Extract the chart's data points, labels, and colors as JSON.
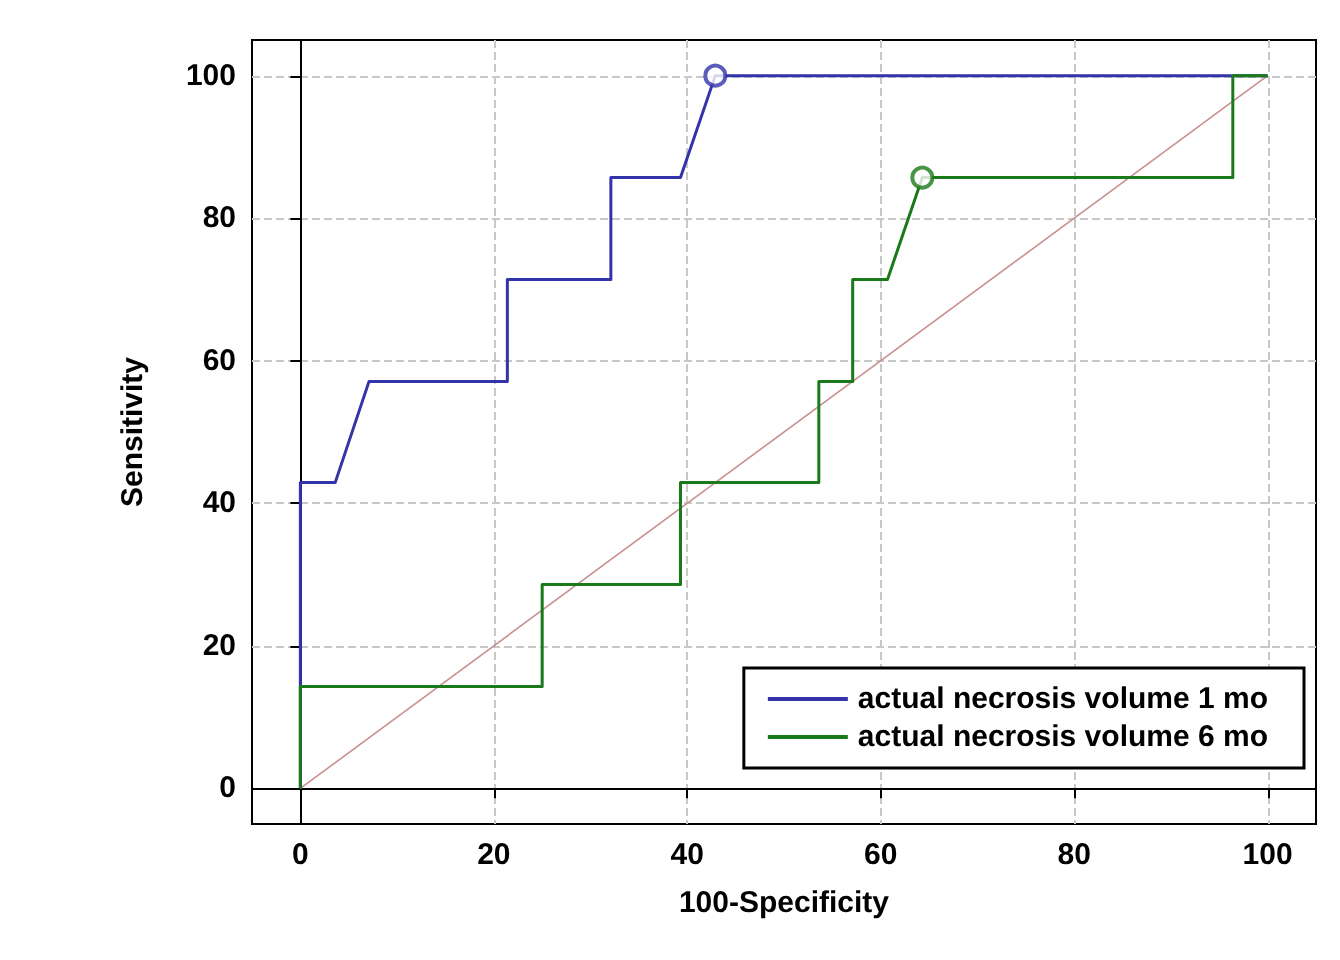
{
  "chart_data": {
    "type": "line",
    "xlabel": "100-Specificity",
    "ylabel": "Sensitivity",
    "xlim": [
      -5,
      105
    ],
    "ylim": [
      -5,
      105
    ],
    "xticks": [
      0,
      20,
      40,
      60,
      80,
      100
    ],
    "yticks": [
      0,
      20,
      40,
      60,
      80,
      100
    ],
    "grid": true,
    "legend": "bottom right",
    "series": [
      {
        "name": "actual necrosis volume 1 mo",
        "color": "#3333aa",
        "x": [
          0,
          0,
          3.6,
          7.1,
          21.4,
          21.4,
          32.1,
          32.1,
          39.3,
          42.9,
          100
        ],
        "values": [
          0,
          42.9,
          42.9,
          57.1,
          57.1,
          71.4,
          71.4,
          85.7,
          85.7,
          100,
          100
        ]
      },
      {
        "name": "actual necrosis volume 6 mo",
        "color": "#1a7a1a",
        "x": [
          0,
          0,
          25,
          25,
          39.3,
          39.3,
          53.6,
          53.6,
          57.1,
          57.1,
          60.7,
          64.3,
          96.4,
          96.4,
          100
        ],
        "values": [
          0,
          14.3,
          14.3,
          28.6,
          28.6,
          42.9,
          42.9,
          57.1,
          57.1,
          71.4,
          71.4,
          85.7,
          85.7,
          100,
          100
        ]
      },
      {
        "type": "line",
        "color": "#c89090",
        "x": [
          0,
          100
        ],
        "values": [
          0,
          100
        ]
      },
      {
        "type": "scatter",
        "marker": "circle",
        "color": "#3333aa",
        "x": [
          42.9
        ],
        "values": [
          100
        ]
      },
      {
        "type": "scatter",
        "marker": "circle",
        "color": "#1a7a1a",
        "x": [
          64.3
        ],
        "values": [
          85.7
        ]
      }
    ]
  }
}
